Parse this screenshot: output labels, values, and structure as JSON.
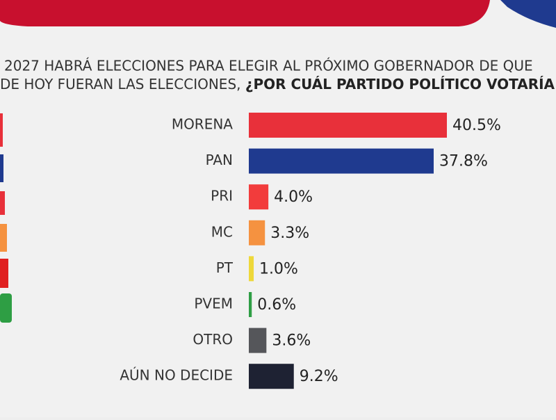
{
  "chart_data": {
    "type": "bar",
    "orientation": "horizontal",
    "subtitle": {
      "line1": "2027 HABRÁ ELECCIONES PARA ELEGIR AL PRÓXIMO GOBERNADOR DE QUE",
      "line2": "DE HOY FUERAN LAS ELECCIONES, ",
      "line2_bold": "¿POR CUÁL PARTIDO POLÍTICO VOTARÍA"
    },
    "categories": [
      "MORENA",
      "PAN",
      "PRI",
      "MC",
      "PT",
      "PVEM",
      "OTRO",
      "AÚN NO DECIDE"
    ],
    "values": [
      40.5,
      37.8,
      4.0,
      3.3,
      1.0,
      0.6,
      3.6,
      9.2
    ],
    "value_labels": [
      "40.5%",
      "37.8%",
      "4.0%",
      "3.3%",
      "1.0%",
      "0.6%",
      "3.6%",
      "9.2%"
    ],
    "colors": [
      "#e8303a",
      "#1f3a8f",
      "#f23c3c",
      "#f59240",
      "#eed83a",
      "#2e9e44",
      "#55565a",
      "#1e2233"
    ]
  }
}
